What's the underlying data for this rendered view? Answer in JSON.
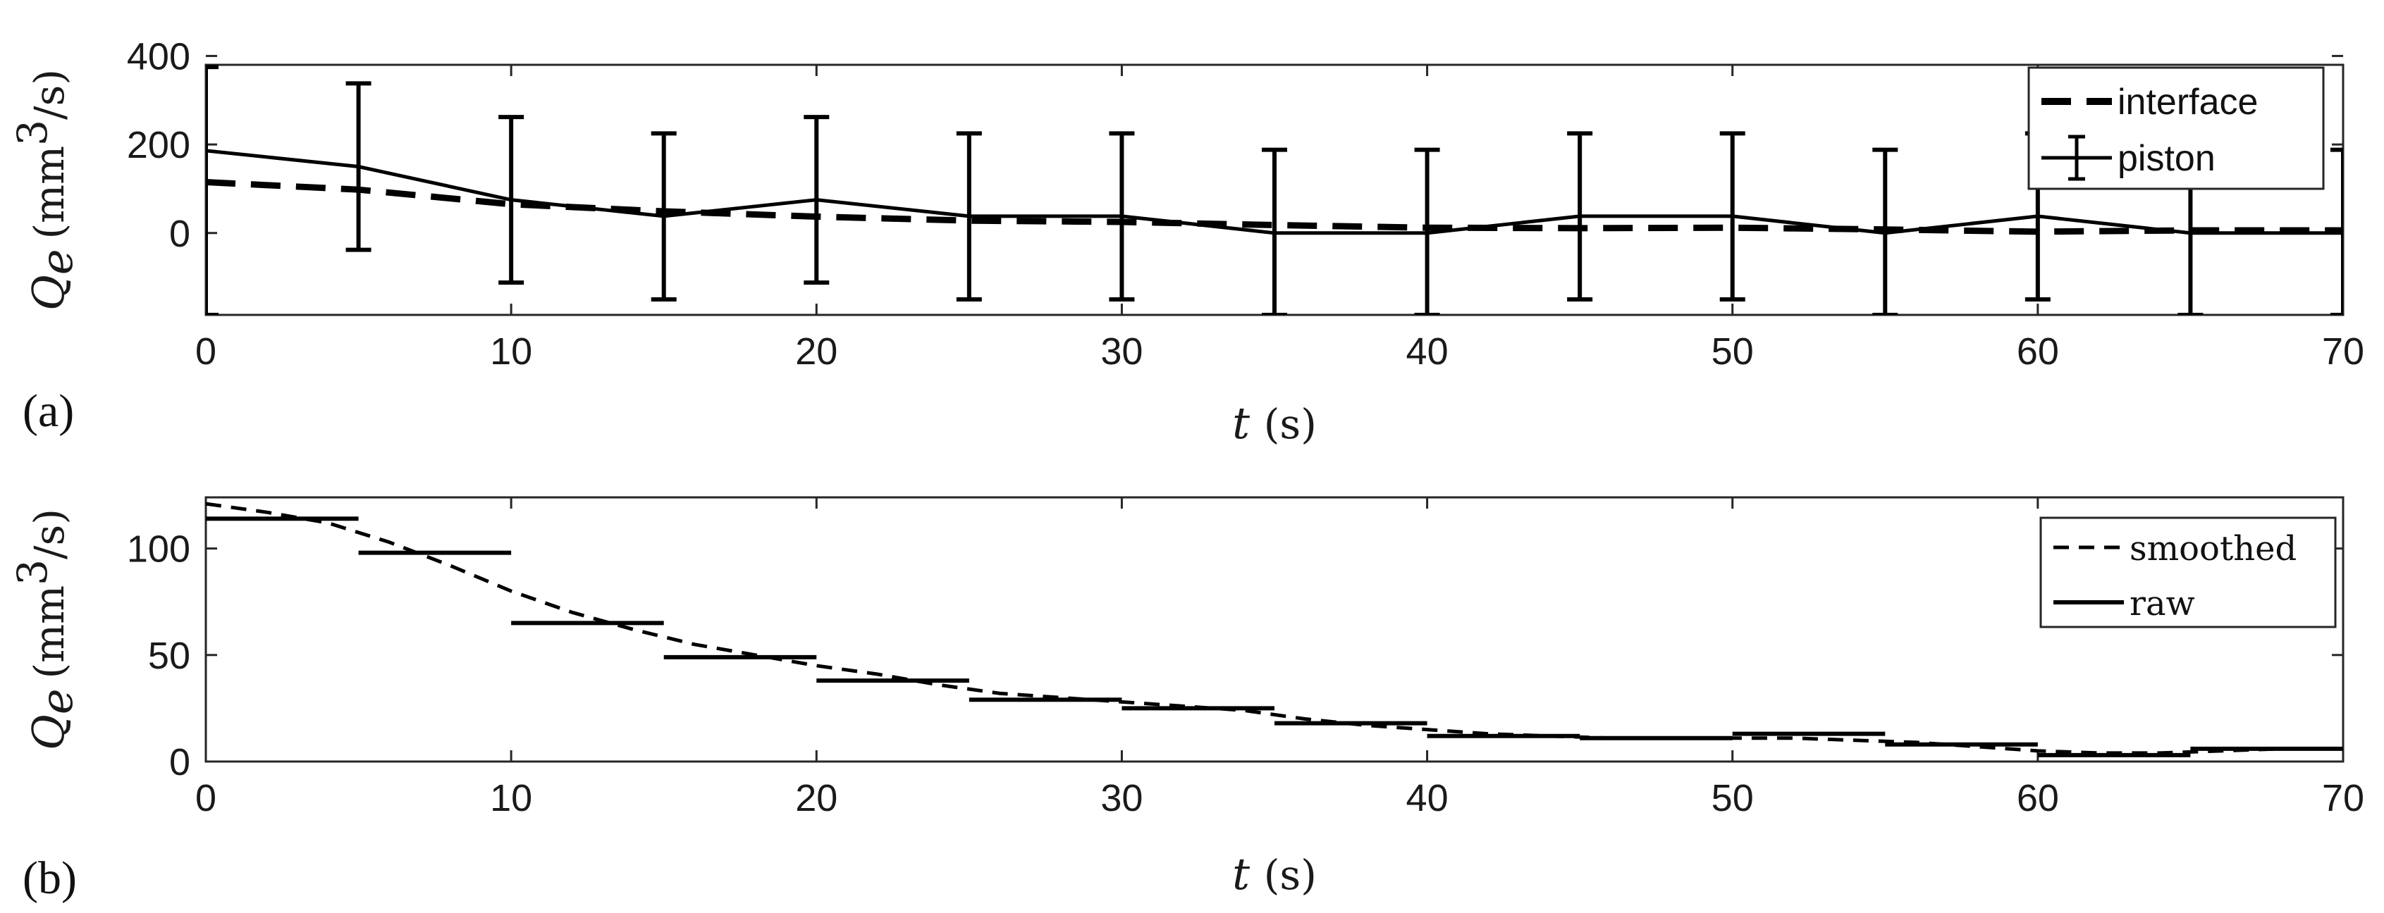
{
  "chart_data": [
    {
      "type": "line",
      "panel_label": "(a)",
      "xlabel_var": "t",
      "xlabel_unit": "(s)",
      "ylabel_var": "Q",
      "ylabel_sub": "e",
      "ylabel_unit_a": "(mm",
      "ylabel_unit_sup": "3",
      "ylabel_unit_b": "/s)",
      "xlim": [
        0,
        70
      ],
      "ylim": [
        -185,
        380
      ],
      "xticks": [
        "0",
        "10",
        "20",
        "30",
        "40",
        "50",
        "60",
        "70"
      ],
      "yticks": [
        "0",
        "200",
        "400"
      ],
      "grid": false,
      "legend_position": "top-right",
      "series": [
        {
          "name": "interface",
          "style": "dashed",
          "x": [
            0,
            5,
            10,
            15,
            20,
            25,
            30,
            35,
            40,
            45,
            50,
            55,
            60,
            65,
            70
          ],
          "values": [
            115,
            98,
            65,
            49,
            37,
            28,
            25,
            18,
            12,
            11,
            12,
            8,
            3,
            6,
            6
          ]
        },
        {
          "name": "piston",
          "style": "solid-errorbar",
          "x": [
            0,
            5,
            10,
            15,
            20,
            25,
            30,
            35,
            40,
            45,
            50,
            55,
            60,
            65,
            70
          ],
          "values": [
            186,
            150,
            75,
            38,
            75,
            38,
            38,
            0,
            0,
            38,
            38,
            0,
            38,
            0,
            0
          ],
          "err_low": [
            -185,
            -38,
            -112,
            -150,
            -112,
            -150,
            -150,
            -185,
            -185,
            -150,
            -150,
            -185,
            -150,
            -185,
            -185
          ],
          "err_high": [
            375,
            338,
            262,
            225,
            262,
            225,
            225,
            188,
            188,
            225,
            225,
            188,
            225,
            188,
            188
          ]
        }
      ]
    },
    {
      "type": "line",
      "panel_label": "(b)",
      "xlabel_var": "t",
      "xlabel_unit": "(s)",
      "ylabel_var": "Q",
      "ylabel_sub": "e",
      "ylabel_unit_a": "(mm",
      "ylabel_unit_sup": "3",
      "ylabel_unit_b": "/s)",
      "xlim": [
        0,
        70
      ],
      "ylim": [
        0,
        124
      ],
      "xticks": [
        "0",
        "10",
        "20",
        "30",
        "40",
        "50",
        "60",
        "70"
      ],
      "yticks": [
        "0",
        "50",
        "100"
      ],
      "grid": false,
      "legend_position": "top-right",
      "series": [
        {
          "name": "smoothed",
          "style": "dashed",
          "x": [
            0,
            2,
            4,
            6,
            8,
            10,
            12,
            14,
            16,
            18,
            20,
            22,
            24,
            26,
            28,
            30,
            32,
            34,
            36,
            38,
            40,
            42,
            44,
            46,
            48,
            50,
            52,
            54,
            56,
            58,
            60,
            62,
            64,
            66,
            68,
            70
          ],
          "values": [
            121,
            117,
            112,
            103,
            92,
            80,
            70,
            62,
            55,
            50,
            45,
            41,
            36,
            32,
            30,
            28,
            26,
            24,
            20,
            17,
            15,
            13,
            12,
            11,
            11,
            11,
            11,
            10,
            9,
            7,
            5,
            4,
            4,
            5,
            6,
            6
          ]
        },
        {
          "name": "raw",
          "style": "steps",
          "segments": [
            {
              "x0": 0,
              "x1": 5,
              "y": 114
            },
            {
              "x0": 5,
              "x1": 10,
              "y": 98
            },
            {
              "x0": 10,
              "x1": 15,
              "y": 65
            },
            {
              "x0": 15,
              "x1": 20,
              "y": 49
            },
            {
              "x0": 20,
              "x1": 25,
              "y": 38
            },
            {
              "x0": 25,
              "x1": 30,
              "y": 29
            },
            {
              "x0": 30,
              "x1": 35,
              "y": 25
            },
            {
              "x0": 35,
              "x1": 40,
              "y": 18
            },
            {
              "x0": 40,
              "x1": 45,
              "y": 12
            },
            {
              "x0": 45,
              "x1": 50,
              "y": 11
            },
            {
              "x0": 50,
              "x1": 55,
              "y": 13
            },
            {
              "x0": 55,
              "x1": 60,
              "y": 8
            },
            {
              "x0": 60,
              "x1": 65,
              "y": 3
            },
            {
              "x0": 65,
              "x1": 70,
              "y": 6
            }
          ]
        }
      ]
    }
  ]
}
